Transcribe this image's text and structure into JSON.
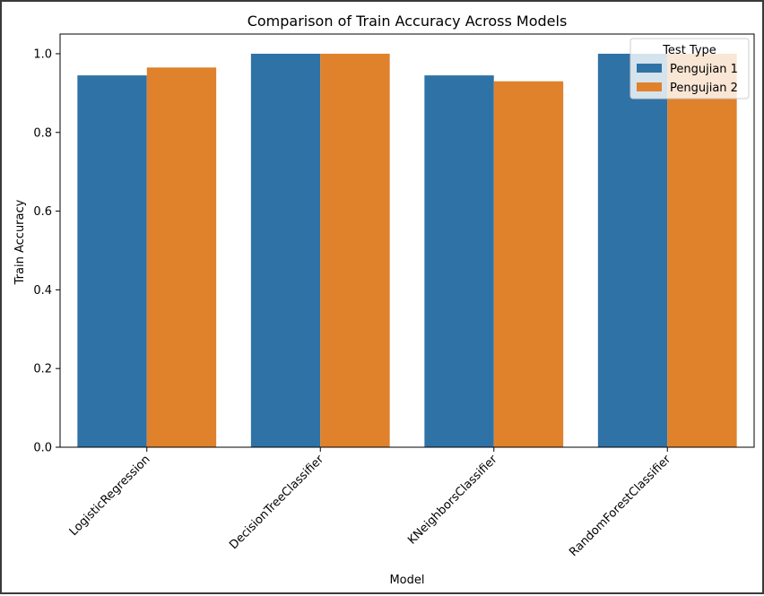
{
  "chart_data": {
    "type": "bar",
    "title": "Comparison of Train Accuracy Across Models",
    "xlabel": "Model",
    "ylabel": "Train Accuracy",
    "categories": [
      "LogisticRegression",
      "DecisionTreeClassifier",
      "KNeighborsClassifier",
      "RandomForestClassifier"
    ],
    "series": [
      {
        "name": "Pengujian 1",
        "color": "#2f72a6",
        "values": [
          0.945,
          1.0,
          0.945,
          1.0
        ]
      },
      {
        "name": "Pengujian 2",
        "color": "#e0812c",
        "values": [
          0.965,
          1.0,
          0.93,
          1.0
        ]
      }
    ],
    "ylim": [
      0,
      1.05
    ],
    "yticks": [
      0.0,
      0.2,
      0.4,
      0.6,
      0.8,
      1.0
    ],
    "ytick_labels": [
      "0.0",
      "0.2",
      "0.4",
      "0.6",
      "0.8",
      "1.0"
    ],
    "legend": {
      "title": "Test Type",
      "position": "top-right"
    },
    "grid": false
  }
}
